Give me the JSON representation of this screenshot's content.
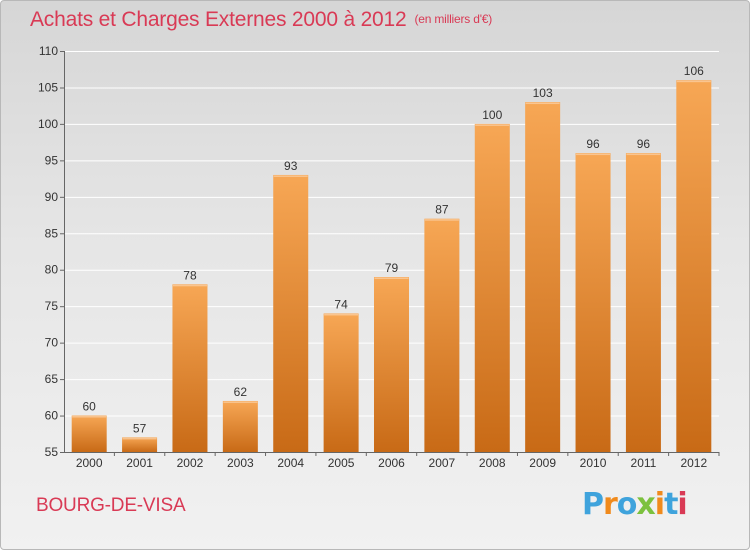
{
  "title": "Achats et Charges Externes 2000 à 2012",
  "subtitle": "(en milliers d'€)",
  "place_name": "BOURG-DE-VISA",
  "logo_text": "Proxiti",
  "colors": {
    "bar_light": "#f7a755",
    "bar_dark": "#c86a16",
    "title": "#d93a55",
    "logo_letters": [
      "#3fa3dc",
      "#f08a1c",
      "#3fa3dc",
      "#7cc13e",
      "#f08a1c",
      "#3fa3dc",
      "#d93a55"
    ]
  },
  "chart_data": {
    "type": "bar",
    "title": "Achats et Charges Externes 2000 à 2012",
    "subtitle": "(en milliers d'€)",
    "categories": [
      "2000",
      "2001",
      "2002",
      "2003",
      "2004",
      "2005",
      "2006",
      "2007",
      "2008",
      "2009",
      "2010",
      "2011",
      "2012"
    ],
    "values": [
      60,
      57,
      78,
      62,
      93,
      74,
      79,
      87,
      100,
      103,
      96,
      96,
      106
    ],
    "ylim": [
      55,
      110
    ],
    "yticks": [
      55,
      60,
      65,
      70,
      75,
      80,
      85,
      90,
      95,
      100,
      105,
      110
    ],
    "grid": true,
    "legend": "none"
  }
}
